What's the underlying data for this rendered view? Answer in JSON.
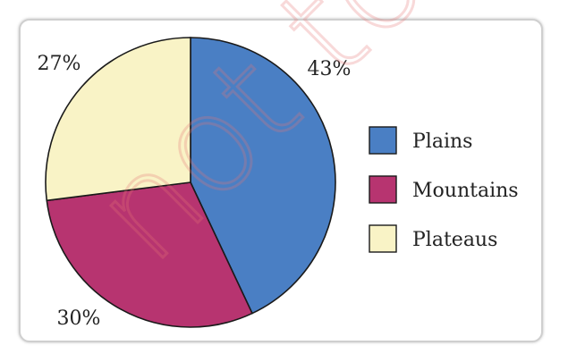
{
  "chart_data": {
    "type": "pie",
    "slices": [
      {
        "label": "Plains",
        "value": 43,
        "value_label": "43%",
        "color": "#4a7fc4"
      },
      {
        "label": "Mountains",
        "value": 30,
        "value_label": "30%",
        "color": "#b73470"
      },
      {
        "label": "Plateaus",
        "value": 27,
        "value_label": "27%",
        "color": "#f9f3c6"
      }
    ],
    "start": "top, clockwise",
    "legend_position": "right",
    "title": "",
    "watermark": "not to"
  }
}
